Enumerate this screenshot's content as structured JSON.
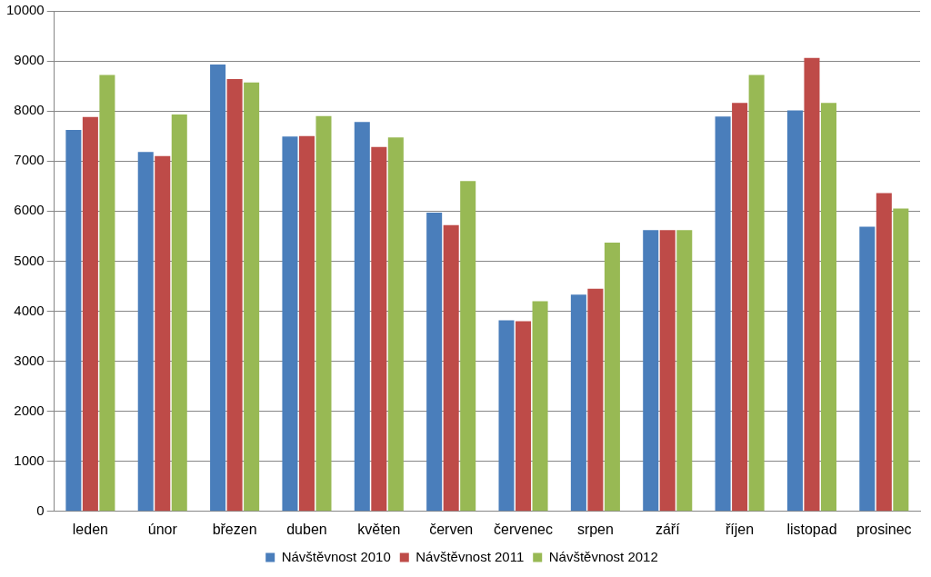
{
  "chart_data": {
    "type": "bar",
    "categories": [
      "leden",
      "únor",
      "březen",
      "duben",
      "květen",
      "červen",
      "červenec",
      "srpen",
      "září",
      "říjen",
      "listopad",
      "prosinec"
    ],
    "series": [
      {
        "name": "Návštěvnost 2010",
        "color": "#4a7ebb",
        "values": [
          7620,
          7180,
          8930,
          7490,
          7780,
          5970,
          3820,
          4330,
          5620,
          7890,
          8010,
          5690
        ]
      },
      {
        "name": "Návštěvnost 2011",
        "color": "#be4b48",
        "values": [
          7880,
          7100,
          8640,
          7500,
          7280,
          5720,
          3800,
          4450,
          5620,
          8160,
          9060,
          6360
        ]
      },
      {
        "name": "Návštěvnost 2012",
        "color": "#98b954",
        "values": [
          8720,
          7930,
          8570,
          7900,
          7470,
          6600,
          4200,
          5370,
          5620,
          8720,
          8160,
          6050
        ]
      }
    ],
    "ylim": [
      0,
      10000
    ],
    "yticks": [
      0,
      1000,
      2000,
      3000,
      4000,
      5000,
      6000,
      7000,
      8000,
      9000,
      10000
    ],
    "grid": true,
    "legend": "bottom"
  }
}
